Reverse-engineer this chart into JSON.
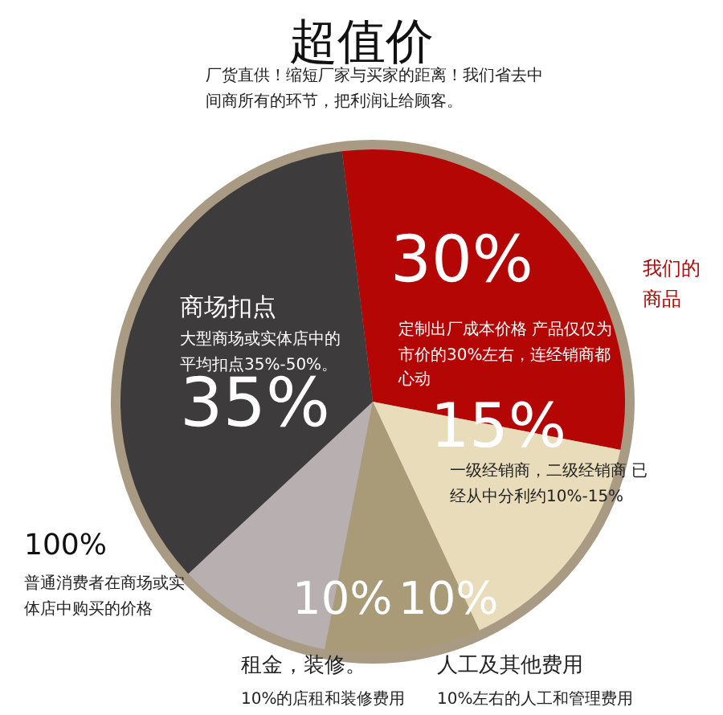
{
  "chart_data": {
    "type": "pie",
    "title": "超值价",
    "subtitle": "厂货直供！缩短厂家与买家的距离！我们省去中间商所有的环节，把利润让给顾客。",
    "categories": [
      "我们的商品",
      null,
      "人工及其他费用",
      "租金，装修。",
      "商场扣点"
    ],
    "values": [
      30,
      15,
      10,
      10,
      35
    ],
    "colors": [
      "#b50606",
      "#e8dcba",
      "#a99a78",
      "#b8b0b0",
      "#3d3b3b"
    ],
    "value_labels": [
      "30%",
      "15%",
      "10%",
      "10%",
      "35%"
    ],
    "annotations": [
      "定制出厂成本价格 产品仅仅为市价的30%左右，连经销商都心动",
      "大型商场或实体店中的平均扣点35%-50%。",
      "一级经销商，二级经销商 已经从中分利约10%-15%",
      "100%",
      "普通消费者在商场或实体店中购买的价格",
      "10%的店租和装修费用",
      "10%左右的人工和管理费用"
    ]
  }
}
